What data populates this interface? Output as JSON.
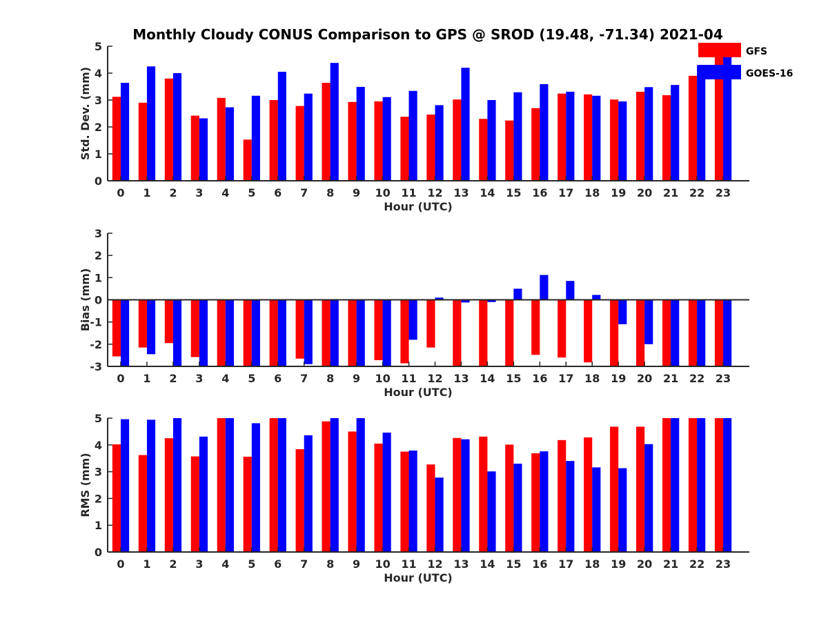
{
  "figure": {
    "title": "Monthly Cloudy CONUS Comparison to GPS @ SROD (19.48, -71.34) 2021-04"
  },
  "legend": [
    {
      "name": "GFS",
      "color": "#ff0000"
    },
    {
      "name": "GOES-16",
      "color": "#0000ff"
    }
  ],
  "chart_data": [
    {
      "type": "bar",
      "title": "Monthly Cloudy CONUS Comparison to GPS @ SROD (19.48, -71.34) 2021-04",
      "xlabel": "Hour (UTC)",
      "ylabel": "Std. Dev. (mm)",
      "ylim": [
        0,
        5
      ],
      "yticks": [
        0,
        1,
        2,
        3,
        4,
        5
      ],
      "legend_position": "top-right",
      "categories": [
        "0",
        "1",
        "2",
        "3",
        "4",
        "5",
        "6",
        "7",
        "8",
        "9",
        "10",
        "11",
        "12",
        "13",
        "14",
        "15",
        "16",
        "17",
        "18",
        "19",
        "20",
        "21",
        "22",
        "23"
      ],
      "series": [
        {
          "name": "GFS",
          "color": "#ff0000",
          "values": [
            3.12,
            2.9,
            3.8,
            2.42,
            3.08,
            1.53,
            3.0,
            2.78,
            3.64,
            2.93,
            2.95,
            2.38,
            2.46,
            3.02,
            2.3,
            2.24,
            2.7,
            3.24,
            3.21,
            3.02,
            3.31,
            3.18,
            3.9,
            4.7
          ]
        },
        {
          "name": "GOES-16",
          "color": "#0000ff",
          "values": [
            3.64,
            4.25,
            4.0,
            2.32,
            2.73,
            3.16,
            4.05,
            3.24,
            4.38,
            3.49,
            3.11,
            3.34,
            2.81,
            4.2,
            3.0,
            3.29,
            3.59,
            3.31,
            3.16,
            2.95,
            3.48,
            3.56,
            4.3,
            4.6
          ]
        }
      ]
    },
    {
      "type": "bar",
      "xlabel": "Hour (UTC)",
      "ylabel": "Bias (mm)",
      "ylim": [
        -3,
        3
      ],
      "yticks": [
        -3,
        -2,
        -1,
        0,
        1,
        2,
        3
      ],
      "categories": [
        "0",
        "1",
        "2",
        "3",
        "4",
        "5",
        "6",
        "7",
        "8",
        "9",
        "10",
        "11",
        "12",
        "13",
        "14",
        "15",
        "16",
        "17",
        "18",
        "19",
        "20",
        "21",
        "22",
        "23"
      ],
      "series": [
        {
          "name": "GFS",
          "color": "#ff0000",
          "values": [
            -2.55,
            -2.15,
            -1.95,
            -2.58,
            -3.0,
            -3.0,
            -3.0,
            -2.65,
            -3.0,
            -3.0,
            -2.72,
            -2.86,
            -2.15,
            -3.0,
            -3.0,
            -3.0,
            -2.48,
            -2.6,
            -2.82,
            -3.0,
            -3.0,
            -3.0,
            -3.0,
            -3.0
          ]
        },
        {
          "name": "GOES-16",
          "color": "#0000ff",
          "values": [
            -3.0,
            -2.45,
            -3.0,
            -3.0,
            -3.0,
            -3.0,
            -3.0,
            -2.9,
            -3.0,
            -3.0,
            -3.0,
            -1.8,
            0.1,
            -0.12,
            -0.1,
            0.5,
            1.12,
            0.85,
            0.22,
            -1.1,
            -2.0,
            -3.0,
            -3.0,
            -3.0
          ]
        }
      ]
    },
    {
      "type": "bar",
      "xlabel": "Hour (UTC)",
      "ylabel": "RMS (mm)",
      "ylim": [
        0,
        5
      ],
      "yticks": [
        0,
        1,
        2,
        3,
        4,
        5
      ],
      "categories": [
        "0",
        "1",
        "2",
        "3",
        "4",
        "5",
        "6",
        "7",
        "8",
        "9",
        "10",
        "11",
        "12",
        "13",
        "14",
        "15",
        "16",
        "17",
        "18",
        "19",
        "20",
        "21",
        "22",
        "23"
      ],
      "series": [
        {
          "name": "GFS",
          "color": "#ff0000",
          "values": [
            4.02,
            3.62,
            4.25,
            3.57,
            5.0,
            3.56,
            5.0,
            3.84,
            4.88,
            4.5,
            4.05,
            3.75,
            3.27,
            4.26,
            4.31,
            4.01,
            3.69,
            4.18,
            4.28,
            4.68,
            4.68,
            5.0,
            5.0,
            5.0
          ]
        },
        {
          "name": "GOES-16",
          "color": "#0000ff",
          "values": [
            4.96,
            4.94,
            5.0,
            4.31,
            5.0,
            4.81,
            5.0,
            4.36,
            5.0,
            5.0,
            4.46,
            3.79,
            2.78,
            4.21,
            3.01,
            3.3,
            3.76,
            3.4,
            3.16,
            3.13,
            4.03,
            5.0,
            5.0,
            5.0
          ]
        }
      ]
    }
  ]
}
